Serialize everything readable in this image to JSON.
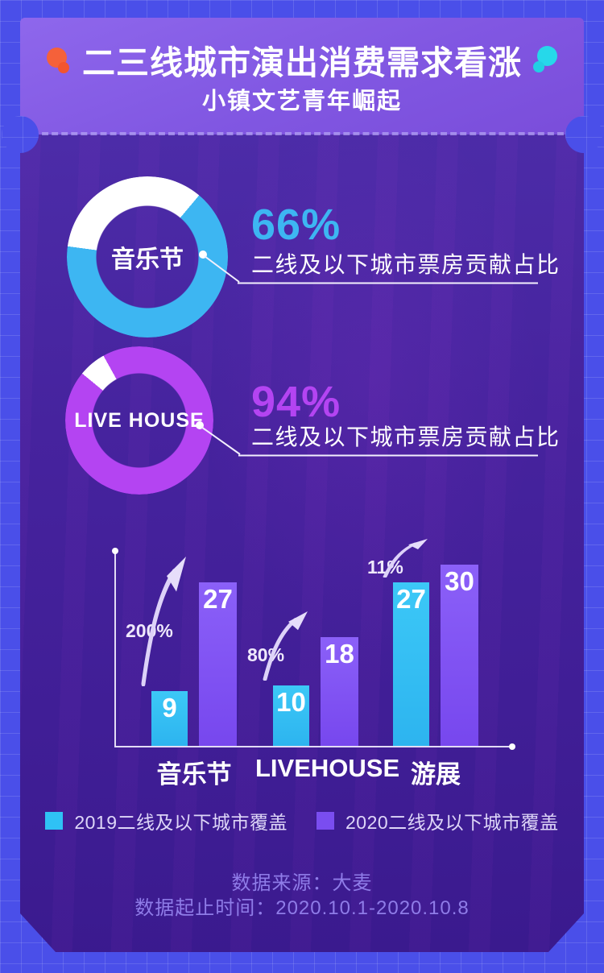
{
  "header": {
    "title": "二三线城市演出消费需求看涨",
    "subtitle": "小镇文艺青年崛起"
  },
  "donuts": [
    {
      "label": "音乐节",
      "value": 66,
      "percent_label": "66%",
      "description": "二线及以下城市票房贡献占比",
      "color": "#3db6f2",
      "remainder_color": "#ffffff"
    },
    {
      "label": "LIVE HOUSE",
      "value": 94,
      "percent_label": "94%",
      "description": "二线及以下城市票房贡献占比",
      "color": "#b444f2",
      "remainder_color": "#ffffff"
    }
  ],
  "chart_data": {
    "type": "bar",
    "categories": [
      "音乐节",
      "LIVEHOUSE",
      "游展"
    ],
    "series": [
      {
        "name": "2019二线及以下城市覆盖",
        "color": "#2fc1f5",
        "values": [
          9,
          10,
          27
        ]
      },
      {
        "name": "2020二线及以下城市覆盖",
        "color": "#7a4df0",
        "values": [
          27,
          18,
          30
        ]
      }
    ],
    "growth_labels": [
      "200%",
      "80%",
      "11%"
    ],
    "ylim": [
      0,
      30
    ],
    "grid": false,
    "legend_position": "bottom",
    "value_labels_shown": true
  },
  "footer": {
    "source": "数据来源：大麦",
    "period": "数据起止时间：2020.10.1-2020.10.8"
  },
  "colors": {
    "page_background": "#4a4fe9",
    "panel_header": "#8157e2",
    "panel_body": "#44219c",
    "accent_orange": "#f5613a",
    "accent_cyan": "#26d8ea",
    "footer_text": "#8f7ce8"
  }
}
